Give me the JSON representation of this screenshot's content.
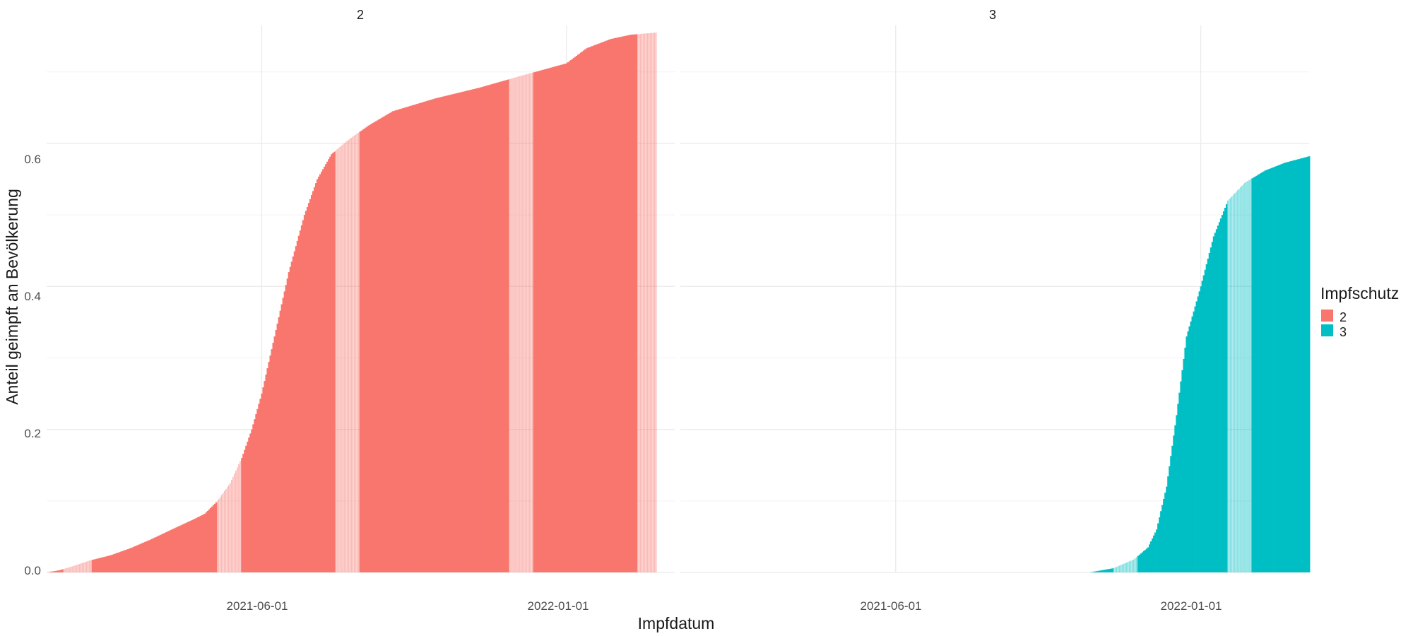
{
  "chart_data": {
    "type": "bar",
    "xlabel": "Impfdatum",
    "ylabel": "Anteil geimpft an Bevölkerung",
    "x_ticks": [
      "2021-06-01",
      "2022-01-01"
    ],
    "y_ticks": [
      "0.0",
      "0.2",
      "0.4",
      "0.6"
    ],
    "ylim": [
      0,
      0.765
    ],
    "xlim": [
      "2021-01-01",
      "2022-03-18"
    ],
    "grid": true,
    "legend": {
      "title": "Impfschutz",
      "position": "right",
      "entries": [
        {
          "label": "2",
          "color": "#F8766D"
        },
        {
          "label": "3",
          "color": "#00BFC4"
        }
      ]
    },
    "panels": [
      {
        "strip_label": "2",
        "color": "#F8766D",
        "series_start": "2021-01-01",
        "series_end": "2022-03-05",
        "points": [
          [
            "2021-01-01",
            0.0
          ],
          [
            "2021-01-10",
            0.003
          ],
          [
            "2021-01-20",
            0.009
          ],
          [
            "2021-02-01",
            0.017
          ],
          [
            "2021-02-15",
            0.024
          ],
          [
            "2021-03-01",
            0.034
          ],
          [
            "2021-03-15",
            0.046
          ],
          [
            "2021-04-01",
            0.062
          ],
          [
            "2021-04-15",
            0.075
          ],
          [
            "2021-04-22",
            0.082
          ],
          [
            "2021-05-01",
            0.1
          ],
          [
            "2021-05-10",
            0.125
          ],
          [
            "2021-05-18",
            0.16
          ],
          [
            "2021-05-25",
            0.2
          ],
          [
            "2021-06-01",
            0.25
          ],
          [
            "2021-06-10",
            0.33
          ],
          [
            "2021-06-20",
            0.42
          ],
          [
            "2021-07-01",
            0.5
          ],
          [
            "2021-07-10",
            0.55
          ],
          [
            "2021-07-20",
            0.585
          ],
          [
            "2021-08-01",
            0.605
          ],
          [
            "2021-08-15",
            0.625
          ],
          [
            "2021-09-01",
            0.645
          ],
          [
            "2021-10-01",
            0.663
          ],
          [
            "2021-11-01",
            0.678
          ],
          [
            "2021-12-01",
            0.695
          ],
          [
            "2022-01-01",
            0.712
          ],
          [
            "2022-01-15",
            0.733
          ],
          [
            "2022-02-01",
            0.746
          ],
          [
            "2022-02-15",
            0.752
          ],
          [
            "2022-03-05",
            0.755
          ]
        ],
        "highlight_ranges": [
          [
            "2021-01-13",
            "2021-02-01"
          ],
          [
            "2021-05-01",
            "2021-05-17"
          ],
          [
            "2021-07-23",
            "2021-08-08"
          ],
          [
            "2021-11-22",
            "2021-12-08"
          ],
          [
            "2022-02-20",
            "2022-03-05"
          ]
        ]
      },
      {
        "strip_label": "3",
        "color": "#00BFC4",
        "series_start": "2021-10-15",
        "series_end": "2022-03-18",
        "points": [
          [
            "2021-10-15",
            0.0
          ],
          [
            "2021-11-01",
            0.006
          ],
          [
            "2021-11-15",
            0.018
          ],
          [
            "2021-11-25",
            0.035
          ],
          [
            "2021-12-01",
            0.06
          ],
          [
            "2021-12-08",
            0.12
          ],
          [
            "2021-12-15",
            0.22
          ],
          [
            "2021-12-22",
            0.33
          ],
          [
            "2022-01-01",
            0.4
          ],
          [
            "2022-01-10",
            0.47
          ],
          [
            "2022-01-20",
            0.52
          ],
          [
            "2022-02-01",
            0.545
          ],
          [
            "2022-02-15",
            0.562
          ],
          [
            "2022-03-01",
            0.573
          ],
          [
            "2022-03-18",
            0.582
          ]
        ],
        "highlight_ranges": [
          [
            "2021-11-01",
            "2021-11-17"
          ],
          [
            "2022-01-20",
            "2022-02-05"
          ]
        ]
      }
    ]
  }
}
